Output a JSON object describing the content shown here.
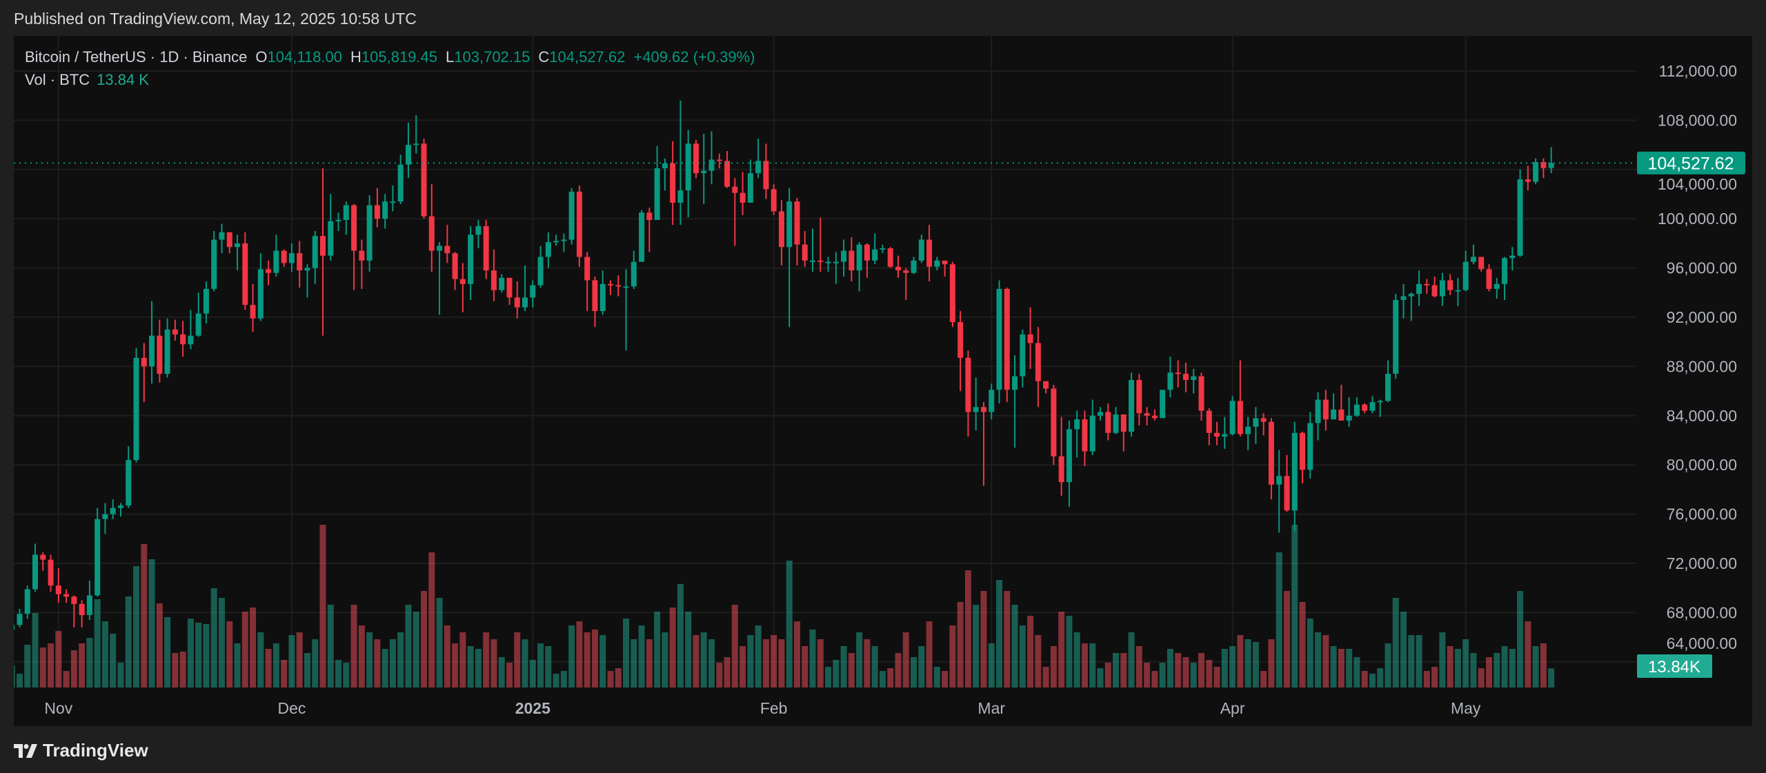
{
  "header": {
    "published": "Published on TradingView.com, May 12, 2025 10:58 UTC"
  },
  "legend": {
    "symbol": "Bitcoin / TetherUS · 1D · Binance",
    "o_label": "O",
    "open": "104,118.00",
    "h_label": "H",
    "high": "105,819.45",
    "l_label": "L",
    "low": "103,702.15",
    "c_label": "C",
    "close": "104,527.62",
    "change": "+409.62 (+0.39%)"
  },
  "volume_legend": {
    "label": "Vol · BTC",
    "value": "13.84 K"
  },
  "footer": {
    "brand": "TradingView",
    "logo_icon": "tradingview-logo-icon"
  },
  "colors": {
    "up": "#089981",
    "down": "#f23645",
    "volume_up": "#22ab94",
    "volume_down": "#f7525f",
    "background": "#0f0f0f",
    "frame": "#1f1f1f",
    "grid": "#1e1e1e",
    "text": "#d1d4dc"
  },
  "chart_data": {
    "type": "candlestick",
    "interval": "1D",
    "first_date": "2024-10-26",
    "first_open": 66600,
    "close": [
      67000,
      67900,
      69900,
      72700,
      72300,
      70200,
      69500,
      69300,
      68700,
      67800,
      69400,
      75600,
      76000,
      76500,
      76700,
      80400,
      88700,
      88000,
      90500,
      87400,
      91000,
      90600,
      89800,
      90500,
      92300,
      94300,
      98300,
      98900,
      97700,
      98000,
      93000,
      91900,
      95900,
      95600,
      97400,
      96400,
      97200,
      95800,
      96000,
      98600,
      97000,
      99800,
      99900,
      101100,
      97400,
      96600,
      101100,
      100000,
      101400,
      101400,
      104400,
      106000,
      106100,
      100200,
      97400,
      97800,
      97200,
      95100,
      94700,
      98700,
      99400,
      95800,
      94200,
      95200,
      93600,
      92800,
      93600,
      94600,
      96900,
      98100,
      98200,
      98300,
      102200,
      96900,
      95000,
      92500,
      94700,
      94600,
      94500,
      94500,
      96500,
      100500,
      99900,
      104100,
      104500,
      101300,
      102300,
      106100,
      103700,
      103900,
      104800,
      104700,
      102600,
      102100,
      101300,
      103700,
      104700,
      102400,
      100600,
      97700,
      101400,
      97900,
      96600,
      96600,
      96500,
      96500,
      96500,
      97400,
      95800,
      97900,
      96600,
      97500,
      97600,
      96100,
      95800,
      95600,
      96600,
      98300,
      96100,
      96600,
      96300,
      91600,
      88700,
      84300,
      84700,
      84300,
      86100,
      94300,
      86100,
      87200,
      90600,
      89900,
      86800,
      86200,
      80700,
      78600,
      82900,
      83700,
      81100,
      84000,
      84300,
      82600,
      84100,
      82700,
      86900,
      84200,
      84000,
      83800,
      86100,
      87500,
      87400,
      86900,
      87200,
      84400,
      82600,
      82300,
      82500,
      85200,
      82500,
      83100,
      83800,
      83500,
      78400,
      79100,
      76300,
      82600,
      79600,
      83400,
      85300,
      83700,
      84500,
      83600,
      84000,
      84900,
      84400,
      85100,
      85200,
      87400,
      93400,
      93700,
      93900,
      94700,
      94600,
      93700,
      95000,
      94200,
      94200,
      96500,
      96900,
      95900,
      94300,
      94700,
      96800,
      97000,
      103200,
      103000,
      104600,
      104118,
      104527.62
    ],
    "high": [
      67400,
      68300,
      70200,
      73600,
      72900,
      72700,
      71600,
      69900,
      69400,
      69000,
      70600,
      76500,
      76900,
      77200,
      76900,
      81500,
      89500,
      89900,
      93300,
      91800,
      91900,
      91800,
      91700,
      92600,
      94000,
      94900,
      99000,
      99600,
      98800,
      98700,
      98900,
      94700,
      97200,
      96600,
      98700,
      97500,
      98000,
      98200,
      96300,
      99000,
      104100,
      102000,
      100500,
      101400,
      101200,
      98300,
      101900,
      102500,
      102000,
      102700,
      105200,
      107800,
      108400,
      106500,
      102800,
      98100,
      99500,
      97300,
      96400,
      99400,
      99900,
      99900,
      97500,
      95500,
      95200,
      94900,
      96200,
      95000,
      97800,
      98900,
      98700,
      98800,
      102500,
      102700,
      97300,
      95300,
      95800,
      95000,
      95400,
      95900,
      97400,
      100700,
      100900,
      105900,
      104900,
      106300,
      109600,
      107200,
      106400,
      106900,
      107100,
      105300,
      105500,
      103300,
      103800,
      104800,
      106500,
      106100,
      102800,
      101500,
      102500,
      101700,
      99000,
      99200,
      100100,
      96900,
      97300,
      98300,
      98500,
      98100,
      98000,
      98800,
      97900,
      97700,
      97000,
      96000,
      96900,
      98700,
      99500,
      96900,
      96500,
      96500,
      92500,
      89300,
      87100,
      85100,
      86600,
      95000,
      94400,
      88900,
      91000,
      92800,
      91200,
      86800,
      86500,
      83900,
      83600,
      84400,
      84400,
      85300,
      84700,
      85000,
      84700,
      84000,
      87500,
      87400,
      84700,
      84500,
      86100,
      88800,
      88500,
      88300,
      87800,
      87500,
      84600,
      83500,
      83900,
      85600,
      88500,
      83900,
      84700,
      84200,
      83800,
      81200,
      80800,
      83500,
      82700,
      84300,
      85900,
      86100,
      85800,
      86500,
      85500,
      85500,
      85000,
      85600,
      85300,
      88500,
      93900,
      94700,
      94000,
      95800,
      95100,
      95300,
      95600,
      95500,
      95200,
      97400,
      97900,
      96900,
      96300,
      95200,
      96900,
      97700,
      104000,
      104300,
      104900,
      104900,
      105819.45
    ],
    "low": [
      66400,
      66800,
      67500,
      69700,
      71400,
      69700,
      68800,
      68800,
      66800,
      66800,
      67400,
      69300,
      74400,
      75600,
      75800,
      76500,
      80200,
      85100,
      86600,
      86700,
      87100,
      90100,
      88800,
      89400,
      90400,
      91500,
      94100,
      97200,
      97200,
      95800,
      92600,
      90800,
      91700,
      94600,
      95300,
      96100,
      95700,
      94400,
      93600,
      94700,
      90500,
      96600,
      99000,
      98700,
      94200,
      94300,
      95700,
      99300,
      99200,
      100600,
      101200,
      103300,
      105300,
      100000,
      95700,
      92200,
      96400,
      94200,
      92400,
      93400,
      97600,
      95100,
      93300,
      94000,
      93000,
      91900,
      92500,
      92800,
      94400,
      96000,
      97800,
      97300,
      97900,
      96100,
      92500,
      91200,
      92200,
      93800,
      93700,
      89300,
      94300,
      96500,
      97300,
      99900,
      102300,
      99500,
      99500,
      100100,
      103300,
      101200,
      102800,
      104100,
      102500,
      97800,
      100300,
      101300,
      103300,
      101600,
      100300,
      96200,
      91200,
      96200,
      96100,
      95700,
      95700,
      95700,
      94700,
      95300,
      94900,
      94100,
      95200,
      96300,
      97200,
      96000,
      95200,
      93400,
      95500,
      96400,
      94900,
      95800,
      95300,
      91200,
      86000,
      82300,
      82800,
      78300,
      83700,
      85000,
      85100,
      81400,
      86300,
      87800,
      84700,
      85800,
      80000,
      77500,
      76600,
      80600,
      79900,
      80800,
      83600,
      82000,
      82500,
      81100,
      82300,
      83200,
      83200,
      83600,
      83800,
      85500,
      86300,
      85900,
      85800,
      83600,
      81600,
      81600,
      81300,
      82400,
      82300,
      81200,
      81700,
      82400,
      77200,
      74500,
      76200,
      74600,
      78500,
      78900,
      82000,
      82800,
      83700,
      83600,
      83100,
      83900,
      84200,
      84200,
      83900,
      85100,
      87000,
      91900,
      91700,
      92900,
      93900,
      93600,
      92900,
      93800,
      92900,
      94100,
      96300,
      95700,
      94100,
      93500,
      93400,
      95800,
      96900,
      102300,
      102800,
      103300,
      103702.15
    ],
    "volume": [
      16000,
      10000,
      31000,
      54000,
      29000,
      32000,
      41000,
      12000,
      27000,
      32000,
      36000,
      64000,
      48000,
      39000,
      18000,
      66000,
      88000,
      104000,
      93000,
      61000,
      51000,
      25000,
      26000,
      50000,
      47000,
      46000,
      72000,
      65000,
      48000,
      32000,
      55000,
      58000,
      40000,
      28000,
      32000,
      20000,
      38000,
      40000,
      25000,
      35000,
      118000,
      60000,
      20000,
      18000,
      60000,
      45000,
      40000,
      35000,
      28000,
      35000,
      40000,
      60000,
      55000,
      70000,
      98000,
      65000,
      45000,
      32000,
      40000,
      30000,
      28000,
      40000,
      35000,
      22000,
      18000,
      40000,
      35000,
      20000,
      32000,
      30000,
      10000,
      12000,
      45000,
      48000,
      40000,
      42000,
      38000,
      12000,
      14000,
      50000,
      35000,
      45000,
      35000,
      55000,
      40000,
      58000,
      75000,
      55000,
      38000,
      40000,
      35000,
      18000,
      22000,
      60000,
      30000,
      38000,
      45000,
      35000,
      38000,
      35000,
      92000,
      48000,
      30000,
      42000,
      35000,
      15000,
      20000,
      30000,
      25000,
      40000,
      35000,
      30000,
      12000,
      14000,
      25000,
      40000,
      22000,
      30000,
      48000,
      15000,
      12000,
      45000,
      62000,
      85000,
      60000,
      70000,
      32000,
      78000,
      70000,
      60000,
      45000,
      52000,
      38000,
      15000,
      30000,
      55000,
      52000,
      40000,
      32000,
      32000,
      14000,
      18000,
      25000,
      25000,
      40000,
      30000,
      18000,
      12000,
      18000,
      28000,
      25000,
      22000,
      18000,
      25000,
      20000,
      15000,
      28000,
      30000,
      38000,
      35000,
      33000,
      12000,
      35000,
      98000,
      70000,
      118000,
      62000,
      50000,
      40000,
      38000,
      30000,
      28000,
      28000,
      22000,
      12000,
      10000,
      14000,
      32000,
      65000,
      55000,
      38000,
      38000,
      12000,
      15000,
      40000,
      30000,
      28000,
      35000,
      25000,
      14000,
      22000,
      25000,
      30000,
      28000,
      70000,
      48000,
      30000,
      32000,
      13840
    ],
    "ylim": [
      64000,
      112000
    ],
    "y_ticks": [
      {
        "value": 112000,
        "label": "112,000.00"
      },
      {
        "value": 108000,
        "label": "108,000.00"
      },
      {
        "value": 104000,
        "label": "104,000.00"
      },
      {
        "value": 100000,
        "label": "100,000.00"
      },
      {
        "value": 96000,
        "label": "96,000.00"
      },
      {
        "value": 92000,
        "label": "92,000.00"
      },
      {
        "value": 88000,
        "label": "88,000.00"
      },
      {
        "value": 84000,
        "label": "84,000.00"
      },
      {
        "value": 80000,
        "label": "80,000.00"
      },
      {
        "value": 76000,
        "label": "76,000.00"
      },
      {
        "value": 72000,
        "label": "72,000.00"
      },
      {
        "value": 68000,
        "label": "68,000.00"
      },
      {
        "value": 64000,
        "label": "64,000.00"
      }
    ],
    "x_ticks": [
      {
        "date": "2024-11-01",
        "label": "Nov",
        "bold": false
      },
      {
        "date": "2024-12-01",
        "label": "Dec",
        "bold": false
      },
      {
        "date": "2025-01-01",
        "label": "2025",
        "bold": true
      },
      {
        "date": "2025-02-01",
        "label": "Feb",
        "bold": false
      },
      {
        "date": "2025-03-01",
        "label": "Mar",
        "bold": false
      },
      {
        "date": "2025-04-01",
        "label": "Apr",
        "bold": false
      },
      {
        "date": "2025-05-01",
        "label": "May",
        "bold": false
      }
    ],
    "last_price": 104527.62,
    "last_price_label": "104,527.62",
    "last_volume_label": "13.84K",
    "grid": true
  }
}
